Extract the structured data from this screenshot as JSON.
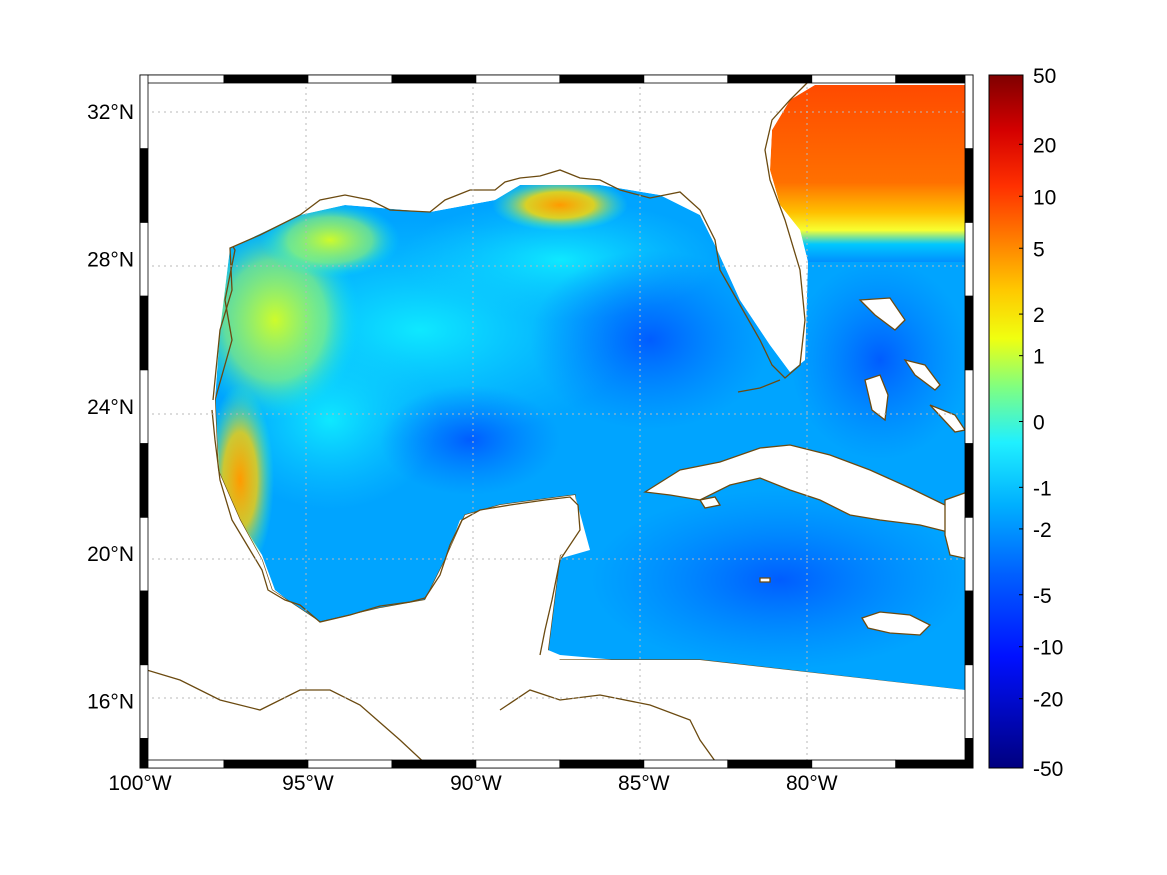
{
  "map": {
    "lon_range": [
      -100,
      -75.2
    ],
    "lat_range": [
      14.2,
      33.0
    ],
    "x_ticks": [
      {
        "lon": -100,
        "label": "100°W"
      },
      {
        "lon": -95,
        "label": "95°W"
      },
      {
        "lon": -90,
        "label": "90°W"
      },
      {
        "lon": -85,
        "label": "85°W"
      },
      {
        "lon": -80,
        "label": "80°W"
      }
    ],
    "y_ticks": [
      {
        "lat": 32,
        "label": "32°N"
      },
      {
        "lat": 28,
        "label": "28°N"
      },
      {
        "lat": 24,
        "label": "24°N"
      },
      {
        "lat": 20,
        "label": "20°N"
      },
      {
        "lat": 16,
        "label": "16°N"
      }
    ],
    "grid": true,
    "coastline_color": "#6b4a10",
    "land_color": "#ffffff"
  },
  "colorbar": {
    "tick_labels": [
      "50",
      "20",
      "10",
      "5",
      "2",
      "1",
      "0",
      "-1",
      "-2",
      "-5",
      "-10",
      "-20",
      "-50"
    ],
    "colors": [
      "#7f0000",
      "#ff2000",
      "#ff7a00",
      "#ffd000",
      "#c8ff30",
      "#40ffc0",
      "#00c8ff",
      "#0060ff",
      "#0000ff",
      "#00007f"
    ]
  },
  "field": {
    "description_values": [
      {
        "region": "north-atlantic-east-of-florida",
        "value": 8
      },
      {
        "region": "western-gulf-coast",
        "value": 1
      },
      {
        "region": "tamaulipas-coast",
        "value": 3
      },
      {
        "region": "mississippi-delta",
        "value": 3
      },
      {
        "region": "central-gulf",
        "value": -2
      },
      {
        "region": "eastern-gulf",
        "value": -5
      },
      {
        "region": "caribbean",
        "value": -6
      }
    ]
  }
}
